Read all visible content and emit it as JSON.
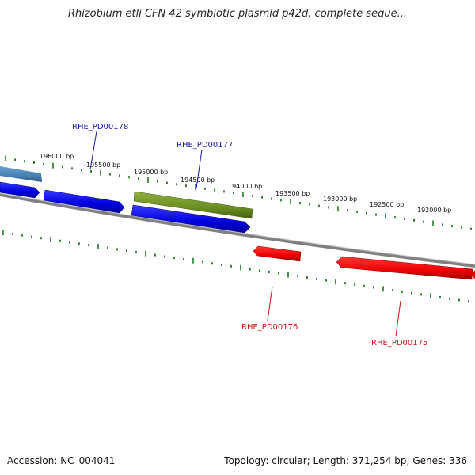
{
  "title": "Rhizobium etli CFN 42 symbiotic plasmid p42d, complete seque...",
  "footer": {
    "accession": "Accession: NC_004041",
    "summary": "Topology: circular; Length: 371,254 bp; Genes: 336"
  },
  "scale_labels": [
    "196000 bp",
    "195500 bp",
    "195000 bp",
    "194500 bp",
    "194000 bp",
    "193500 bp",
    "193000 bp",
    "192500 bp",
    "192000 bp"
  ],
  "gene_labels": [
    {
      "text": "RHE_PD00178",
      "color": "#1a1aa8"
    },
    {
      "text": "RHE_PD00177",
      "color": "#1a1aa8"
    },
    {
      "text": "RHE_PD00176",
      "color": "#cc1111"
    },
    {
      "text": "RHE_PD00175",
      "color": "#cc1111"
    }
  ],
  "colors": {
    "backbone": "#808080",
    "ticks": "#1f7a1f",
    "forward_gene": "#1010e0",
    "reverse_gene": "#ee0000",
    "olive_gene": "#6b8e23",
    "steel_gene": "#4682b4"
  }
}
